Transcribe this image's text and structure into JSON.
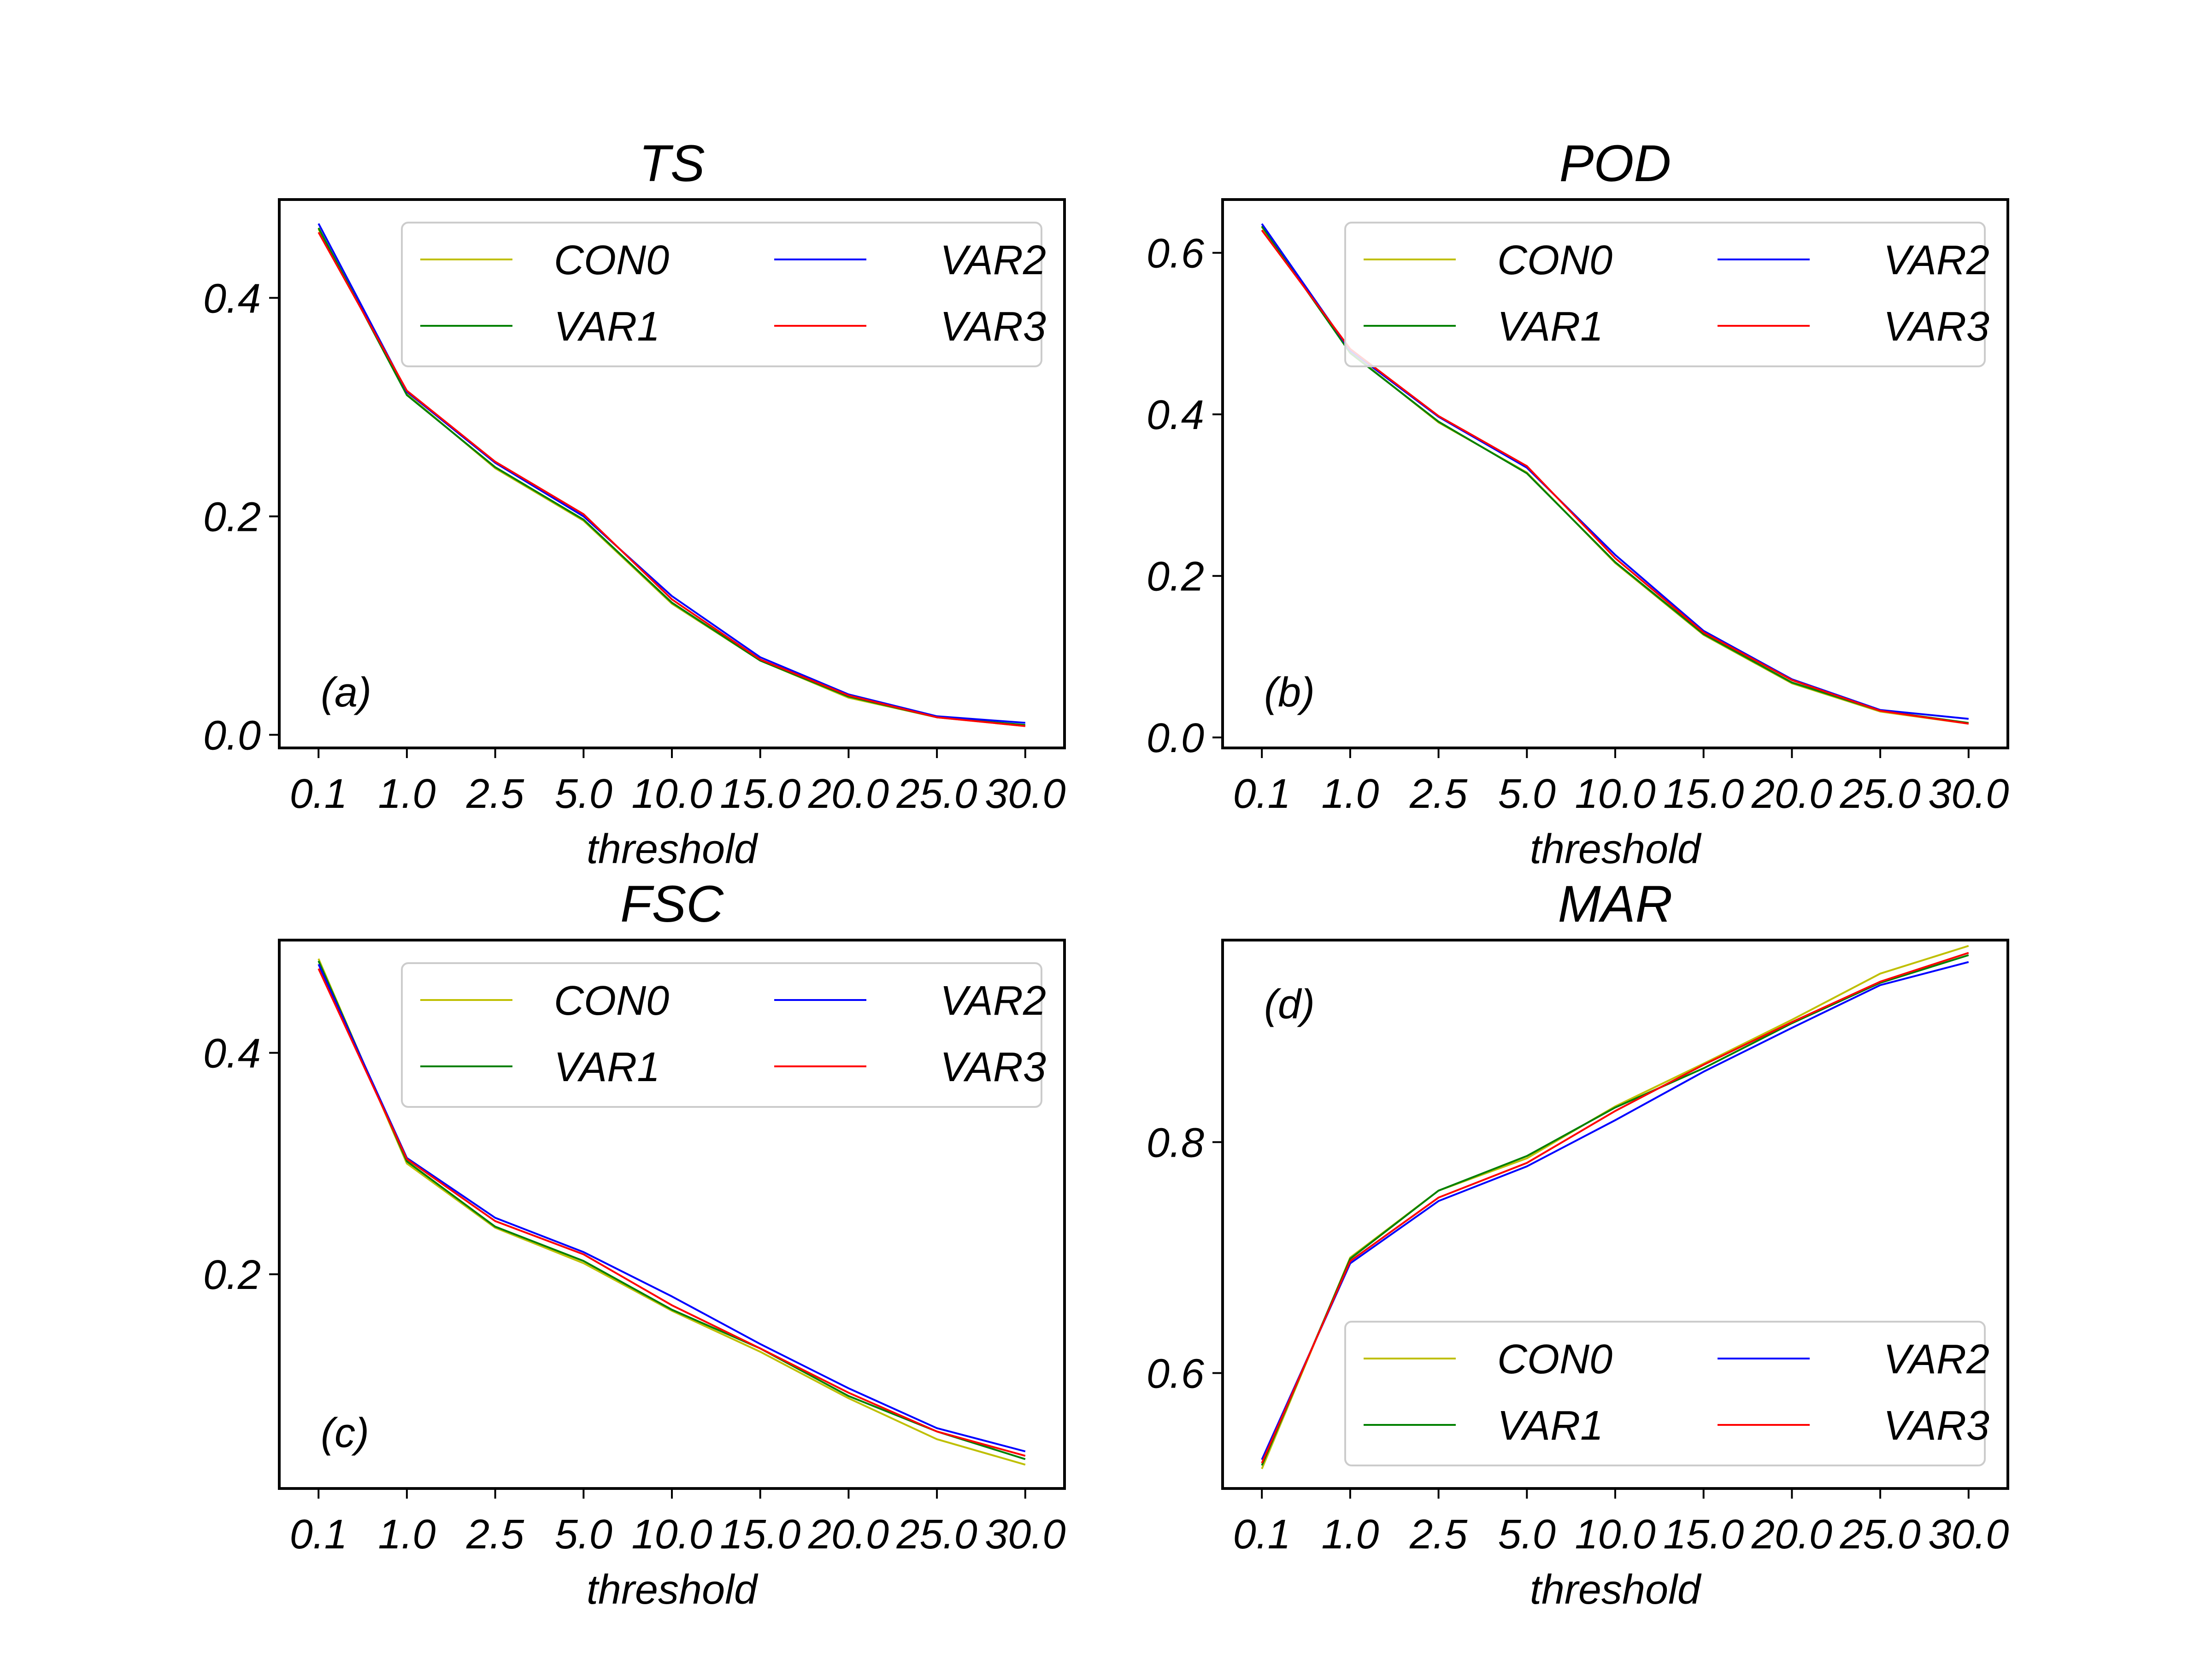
{
  "colors": {
    "CON0": "#bfbf00",
    "VAR1": "#008000",
    "VAR2": "#0000ff",
    "VAR3": "#ff0000"
  },
  "chart_data": [
    {
      "type": "line",
      "title": "TS",
      "xlabel": "threshold",
      "annotation": "(a)",
      "categories": [
        "0.1",
        "1.0",
        "2.5",
        "5.0",
        "10.0",
        "15.0",
        "20.0",
        "25.0",
        "30.0"
      ],
      "ylim": [
        -0.012,
        0.49
      ],
      "yticks": [
        0.0,
        0.2,
        0.4
      ],
      "ytick_labels": [
        "0.0",
        "0.2",
        "0.4"
      ],
      "legend": "top-right",
      "legend_columns": 2,
      "series": [
        {
          "name": "CON0",
          "values": [
            0.463,
            0.312,
            0.244,
            0.196,
            0.12,
            0.068,
            0.034,
            0.016,
            0.008
          ]
        },
        {
          "name": "VAR1",
          "values": [
            0.464,
            0.311,
            0.245,
            0.197,
            0.121,
            0.068,
            0.035,
            0.016,
            0.009
          ]
        },
        {
          "name": "VAR2",
          "values": [
            0.468,
            0.314,
            0.249,
            0.2,
            0.127,
            0.071,
            0.037,
            0.017,
            0.011
          ]
        },
        {
          "name": "VAR3",
          "values": [
            0.46,
            0.315,
            0.25,
            0.202,
            0.124,
            0.069,
            0.036,
            0.016,
            0.008
          ]
        }
      ]
    },
    {
      "type": "line",
      "title": "POD",
      "xlabel": "threshold",
      "annotation": "(b)",
      "categories": [
        "0.1",
        "1.0",
        "2.5",
        "5.0",
        "10.0",
        "15.0",
        "20.0",
        "25.0",
        "30.0"
      ],
      "ylim": [
        -0.013,
        0.666
      ],
      "yticks": [
        0.0,
        0.2,
        0.4,
        0.6
      ],
      "ytick_labels": [
        "0.0",
        "0.2",
        "0.4",
        "0.6"
      ],
      "legend": "top-right",
      "legend_columns": 2,
      "series": [
        {
          "name": "CON0",
          "values": [
            0.632,
            0.477,
            0.39,
            0.328,
            0.216,
            0.127,
            0.067,
            0.032,
            0.017
          ]
        },
        {
          "name": "VAR1",
          "values": [
            0.633,
            0.476,
            0.391,
            0.327,
            0.217,
            0.128,
            0.068,
            0.033,
            0.018
          ]
        },
        {
          "name": "VAR2",
          "values": [
            0.636,
            0.479,
            0.397,
            0.334,
            0.226,
            0.132,
            0.072,
            0.034,
            0.023
          ]
        },
        {
          "name": "VAR3",
          "values": [
            0.628,
            0.481,
            0.398,
            0.336,
            0.222,
            0.13,
            0.071,
            0.033,
            0.017
          ]
        }
      ]
    },
    {
      "type": "line",
      "title": "FSC",
      "xlabel": "threshold",
      "annotation": "(c)",
      "categories": [
        "0.1",
        "1.0",
        "2.5",
        "5.0",
        "10.0",
        "15.0",
        "20.0",
        "25.0",
        "30.0"
      ],
      "ylim": [
        0.0065,
        0.5018
      ],
      "yticks": [
        0.2,
        0.4
      ],
      "ytick_labels": [
        "0.2",
        "0.4"
      ],
      "legend": "top-right",
      "legend_columns": 2,
      "series": [
        {
          "name": "CON0",
          "values": [
            0.485,
            0.3,
            0.242,
            0.21,
            0.167,
            0.13,
            0.088,
            0.051,
            0.028
          ]
        },
        {
          "name": "VAR1",
          "values": [
            0.483,
            0.302,
            0.243,
            0.212,
            0.168,
            0.133,
            0.09,
            0.058,
            0.033
          ]
        },
        {
          "name": "VAR2",
          "values": [
            0.48,
            0.305,
            0.251,
            0.22,
            0.18,
            0.137,
            0.097,
            0.061,
            0.04
          ]
        },
        {
          "name": "VAR3",
          "values": [
            0.476,
            0.304,
            0.248,
            0.218,
            0.172,
            0.133,
            0.093,
            0.058,
            0.036
          ]
        }
      ]
    },
    {
      "type": "line",
      "title": "MAR",
      "xlabel": "threshold",
      "annotation": "(d)",
      "categories": [
        "0.1",
        "1.0",
        "2.5",
        "5.0",
        "10.0",
        "15.0",
        "20.0",
        "25.0",
        "30.0"
      ],
      "ylim": [
        0.5,
        0.975
      ],
      "yticks": [
        0.6,
        0.8
      ],
      "ytick_labels": [
        "0.6",
        "0.8"
      ],
      "legend": "bottom-right",
      "legend_columns": 2,
      "series": [
        {
          "name": "CON0",
          "values": [
            0.517,
            0.7,
            0.758,
            0.786,
            0.831,
            0.868,
            0.906,
            0.946,
            0.97
          ]
        },
        {
          "name": "VAR1",
          "values": [
            0.52,
            0.699,
            0.758,
            0.788,
            0.83,
            0.864,
            0.903,
            0.938,
            0.962
          ]
        },
        {
          "name": "VAR2",
          "values": [
            0.525,
            0.695,
            0.749,
            0.779,
            0.819,
            0.861,
            0.899,
            0.936,
            0.956
          ]
        },
        {
          "name": "VAR3",
          "values": [
            0.522,
            0.697,
            0.752,
            0.782,
            0.827,
            0.867,
            0.904,
            0.939,
            0.964
          ]
        }
      ]
    }
  ]
}
